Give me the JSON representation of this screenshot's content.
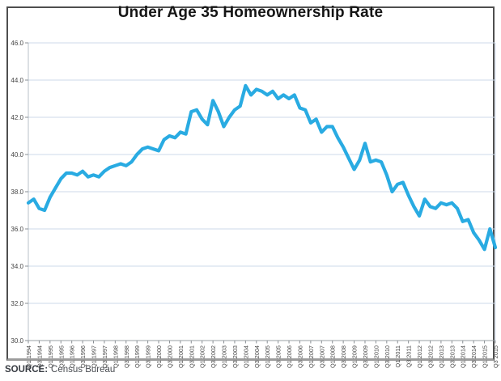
{
  "title": "Under Age 35 Homeownership Rate",
  "source": {
    "label": "SOURCE:",
    "text": "Census Bureau"
  },
  "colors": {
    "line": "#29ABE2",
    "grid": "#ccd9e8",
    "frame": "#ccd9e8",
    "axis": "#9aa0a6",
    "tick": "#8a8f94",
    "tick_label": "#454545",
    "title": "#151515"
  },
  "chart_data": {
    "type": "line",
    "title": "Under Age 35 Homeownership Rate",
    "xlabel": "",
    "ylabel": "",
    "ylim": [
      30.0,
      46.0
    ],
    "y_tick_step": 2.0,
    "y_tick_labels": [
      "30.0",
      "32.0",
      "34.0",
      "36.0",
      "38.0",
      "40.0",
      "42.0",
      "44.0",
      "46.0"
    ],
    "grid": "horizontal",
    "legend_position": "none",
    "x_tick_every": 2,
    "x_tick_labels": [
      "Q1 1994",
      "Q3 1994",
      "Q1 1995",
      "Q3 1995",
      "Q1 1996",
      "Q3 1996",
      "Q1 1997",
      "Q3 1997",
      "Q1 1998",
      "Q3 1998",
      "Q1 1999",
      "Q3 1999",
      "Q1 2000",
      "Q3 2000",
      "Q1 2001",
      "Q3 2001",
      "Q1 2002",
      "Q3 2002",
      "Q1 2003",
      "Q3 2003",
      "Q1 2004",
      "Q3 2004",
      "Q1 2005",
      "Q3 2005",
      "Q1 2006",
      "Q3 2006",
      "Q1 2007",
      "Q3 2007",
      "Q1 2008",
      "Q3 2008",
      "Q1 2009",
      "Q3 2009",
      "Q1 2010",
      "Q3 2010",
      "Q1 2011",
      "Q3 2011",
      "Q1 2012",
      "Q3 2012",
      "Q1 2013",
      "Q3 2013",
      "Q1 2014",
      "Q3 2014",
      "Q1 2015",
      "Q3 2015"
    ],
    "x": [
      "Q1 1994",
      "Q2 1994",
      "Q3 1994",
      "Q4 1994",
      "Q1 1995",
      "Q2 1995",
      "Q3 1995",
      "Q4 1995",
      "Q1 1996",
      "Q2 1996",
      "Q3 1996",
      "Q4 1996",
      "Q1 1997",
      "Q2 1997",
      "Q3 1997",
      "Q4 1997",
      "Q1 1998",
      "Q2 1998",
      "Q3 1998",
      "Q4 1998",
      "Q1 1999",
      "Q2 1999",
      "Q3 1999",
      "Q4 1999",
      "Q1 2000",
      "Q2 2000",
      "Q3 2000",
      "Q4 2000",
      "Q1 2001",
      "Q2 2001",
      "Q3 2001",
      "Q4 2001",
      "Q1 2002",
      "Q2 2002",
      "Q3 2002",
      "Q4 2002",
      "Q1 2003",
      "Q2 2003",
      "Q3 2003",
      "Q4 2003",
      "Q1 2004",
      "Q2 2004",
      "Q3 2004",
      "Q4 2004",
      "Q1 2005",
      "Q2 2005",
      "Q3 2005",
      "Q4 2005",
      "Q1 2006",
      "Q2 2006",
      "Q3 2006",
      "Q4 2006",
      "Q1 2007",
      "Q2 2007",
      "Q3 2007",
      "Q4 2007",
      "Q1 2008",
      "Q2 2008",
      "Q3 2008",
      "Q4 2008",
      "Q1 2009",
      "Q2 2009",
      "Q3 2009",
      "Q4 2009",
      "Q1 2010",
      "Q2 2010",
      "Q3 2010",
      "Q4 2010",
      "Q1 2011",
      "Q2 2011",
      "Q3 2011",
      "Q4 2011",
      "Q1 2012",
      "Q2 2012",
      "Q3 2012",
      "Q4 2012",
      "Q1 2013",
      "Q2 2013",
      "Q3 2013",
      "Q4 2013",
      "Q1 2014",
      "Q2 2014",
      "Q3 2014",
      "Q4 2014",
      "Q1 2015",
      "Q2 2015",
      "Q3 2015"
    ],
    "values": [
      37.4,
      37.6,
      37.1,
      37.0,
      37.7,
      38.2,
      38.7,
      39.0,
      39.0,
      38.9,
      39.1,
      38.8,
      38.9,
      38.8,
      39.1,
      39.3,
      39.4,
      39.5,
      39.4,
      39.6,
      40.0,
      40.3,
      40.4,
      40.3,
      40.2,
      40.8,
      41.0,
      40.9,
      41.2,
      41.1,
      42.3,
      42.4,
      41.9,
      41.6,
      42.9,
      42.3,
      41.5,
      42.0,
      42.4,
      42.6,
      43.7,
      43.2,
      43.5,
      43.4,
      43.2,
      43.4,
      43.0,
      43.2,
      43.0,
      43.2,
      42.5,
      42.4,
      41.7,
      41.9,
      41.2,
      41.5,
      41.5,
      40.9,
      40.4,
      39.8,
      39.2,
      39.7,
      40.6,
      39.6,
      39.7,
      39.6,
      38.9,
      38.0,
      38.4,
      38.5,
      37.8,
      37.2,
      36.7,
      37.6,
      37.2,
      37.1,
      37.4,
      37.3,
      37.4,
      37.1,
      36.4,
      36.5,
      35.8,
      35.4,
      34.9,
      36.0,
      35.0
    ]
  }
}
